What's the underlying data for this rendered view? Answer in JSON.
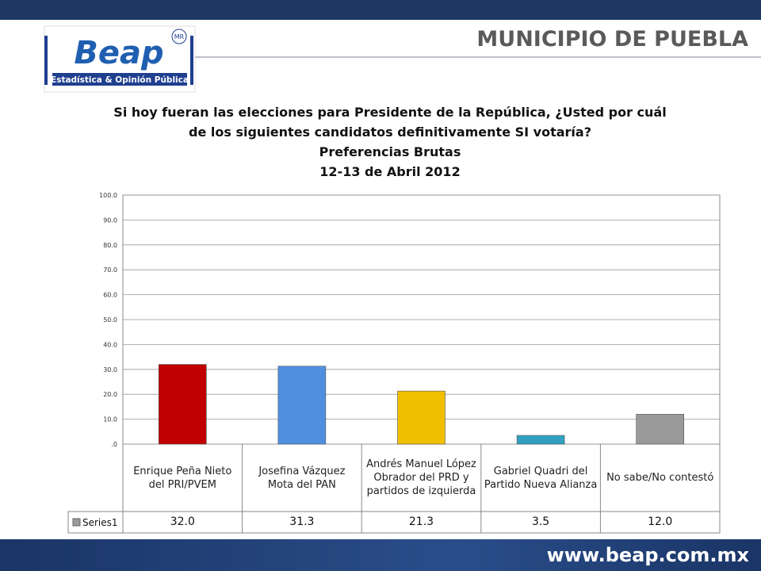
{
  "header": {
    "region": "MUNICIPIO DE PUEBLA",
    "logo_name": "Beap",
    "logo_mark": "MR",
    "logo_tagline": "Estadística & Opinión Pública"
  },
  "chart_data": {
    "type": "bar",
    "title": [
      "Si hoy fueran las elecciones para Presidente de la República, ¿Usted por cuál",
      "de los siguientes candidatos definitivamente SI votaría?",
      "Preferencias Brutas",
      "12-13 de Abril 2012"
    ],
    "categories": [
      "Enrique Peña Nieto del PRI/PVEM",
      "Josefina Vázquez Mota del PAN",
      "Andrés Manuel López Obrador del PRD y partidos de izquierda",
      "Gabriel Quadri del Partido Nueva Alianza",
      "No sabe/No contestó"
    ],
    "series": [
      {
        "name": "Series1",
        "colors": [
          "#c00000",
          "#4f8fe0",
          "#f0c000",
          "#31a0c0",
          "#9a9a9a"
        ],
        "values": [
          32.0,
          31.3,
          21.3,
          3.5,
          12.0
        ],
        "value_labels": [
          "32.0",
          "31.3",
          "21.3",
          "3.5",
          "12.0"
        ]
      }
    ],
    "ylim": [
      0,
      100
    ],
    "yticks": [
      {
        "value": 0,
        "label": ".0"
      },
      {
        "value": 10,
        "label": "10.0"
      },
      {
        "value": 20,
        "label": "20.0"
      },
      {
        "value": 30,
        "label": "30.0"
      },
      {
        "value": 40,
        "label": "40.0"
      },
      {
        "value": 50,
        "label": "50.0"
      },
      {
        "value": 60,
        "label": "60.0"
      },
      {
        "value": 70,
        "label": "70.0"
      },
      {
        "value": 80,
        "label": "80.0"
      },
      {
        "value": 90,
        "label": "90.0"
      },
      {
        "value": 100,
        "label": "100.0"
      }
    ],
    "grid": true
  },
  "footer": {
    "url": "www.beap.com.mx"
  }
}
